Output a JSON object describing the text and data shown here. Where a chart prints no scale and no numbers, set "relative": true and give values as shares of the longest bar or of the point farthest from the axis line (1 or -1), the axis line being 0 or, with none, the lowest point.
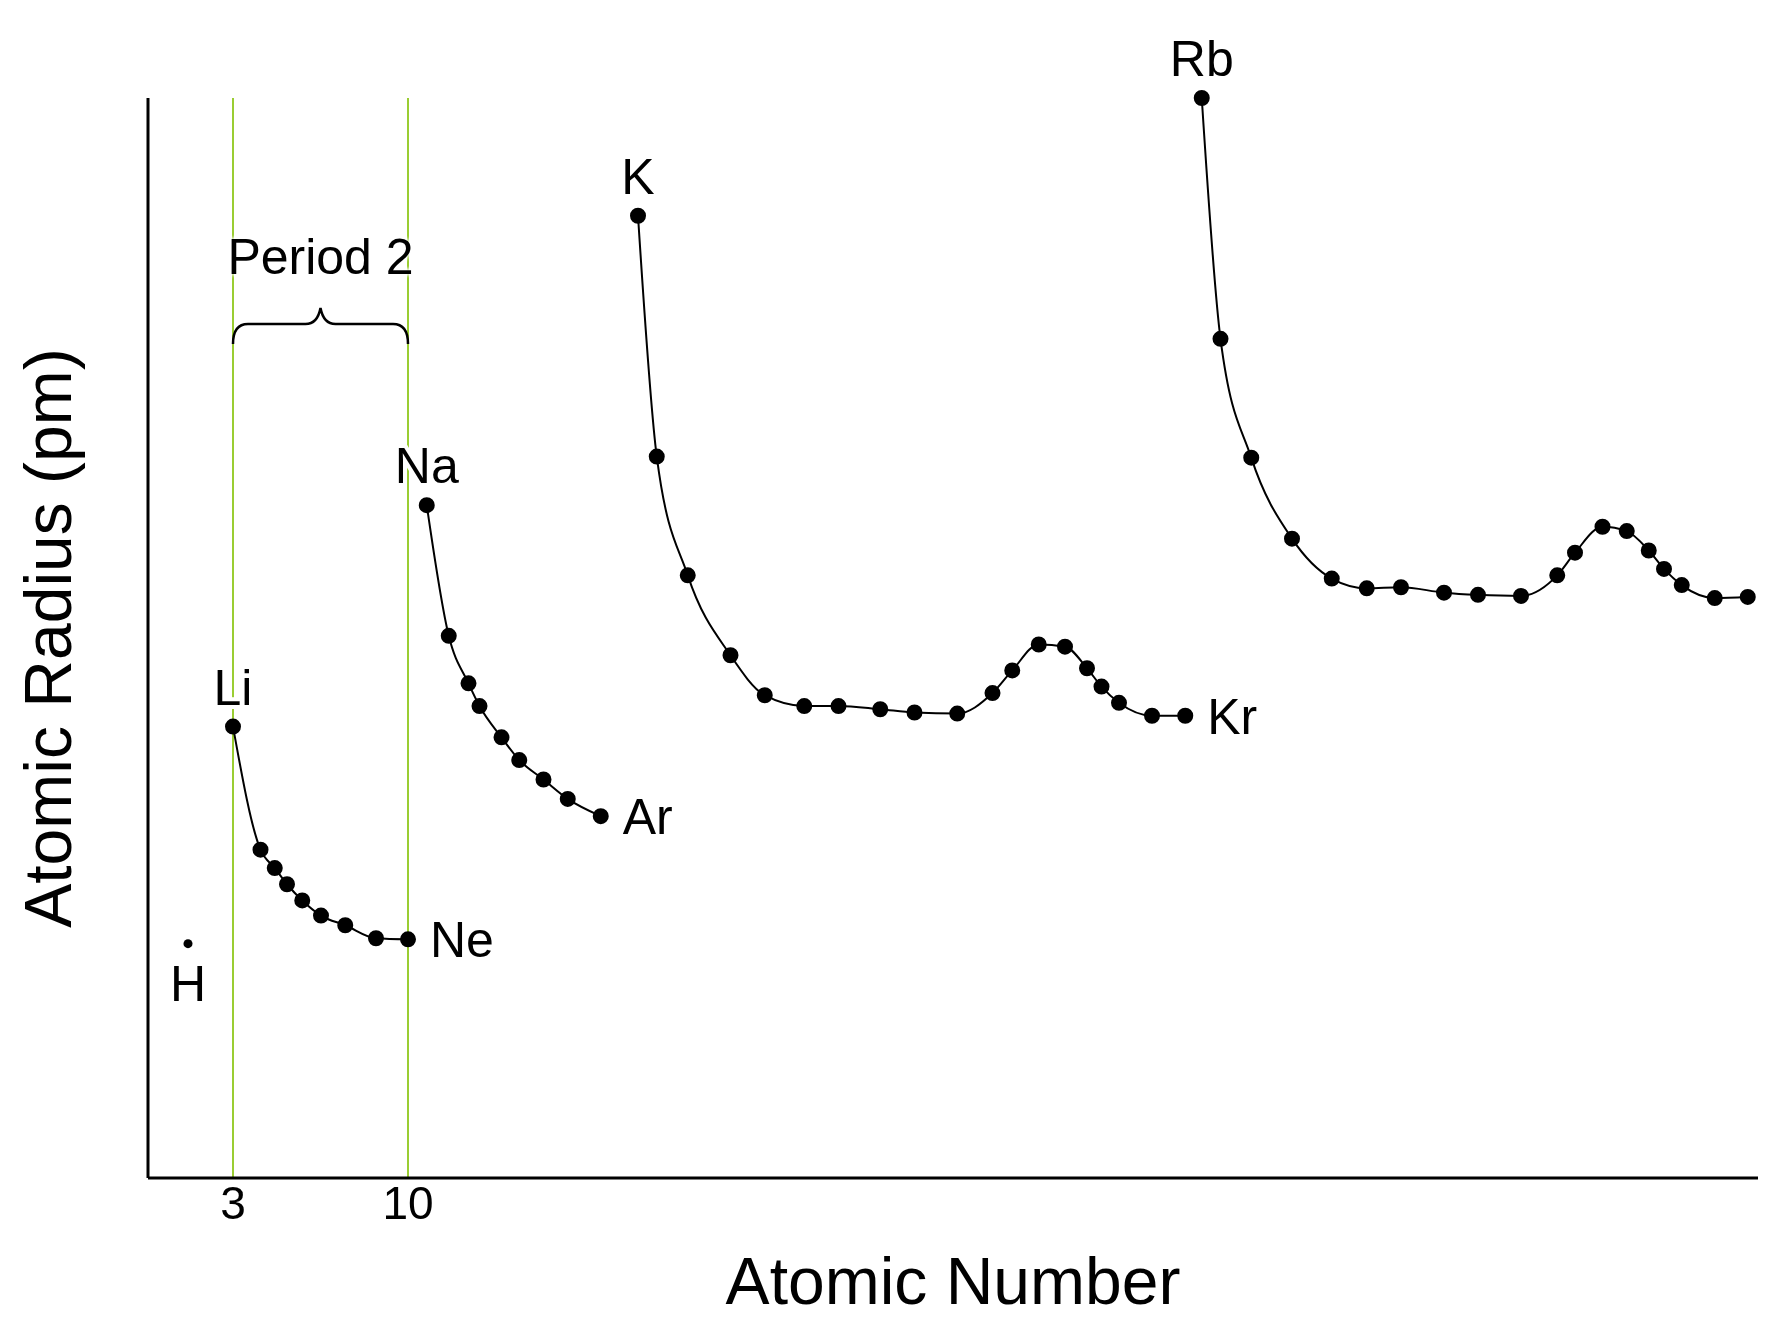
{
  "chart_data": {
    "type": "line",
    "relative": true,
    "xlabel": "Atomic Number",
    "ylabel": "Atomic Radius (pm)",
    "xlim": [
      -0.4,
      64
    ],
    "xticks": [
      3,
      10
    ],
    "marker": "circle",
    "line_style": "solid",
    "grid": false,
    "series": [
      {
        "type": "scatter",
        "color": "#000000",
        "x": [
          1.2
        ],
        "values": [
          0.217
        ]
      },
      {
        "color": "#000000",
        "x": [
          3,
          4.1,
          4.67,
          5.16,
          5.77,
          6.52,
          7.49,
          8.72,
          10
        ],
        "values": [
          0.418,
          0.304,
          0.287,
          0.272,
          0.257,
          0.243,
          0.234,
          0.222,
          0.221
        ]
      },
      {
        "color": "#000000",
        "x": [
          10.75,
          11.63,
          12.42,
          12.86,
          13.74,
          14.45,
          15.42,
          16.39,
          17.71
        ],
        "values": [
          0.623,
          0.502,
          0.458,
          0.437,
          0.408,
          0.387,
          0.369,
          0.351,
          0.335
        ]
      },
      {
        "color": "#000000",
        "x": [
          19.2,
          19.95,
          21.19,
          22.9,
          24.27,
          25.85,
          27.22,
          28.89,
          30.26,
          31.97,
          33.38,
          34.17,
          35.23,
          36.28,
          37.16,
          37.74,
          38.44,
          39.76,
          41.09
        ],
        "values": [
          0.891,
          0.668,
          0.558,
          0.484,
          0.447,
          0.437,
          0.437,
          0.434,
          0.431,
          0.43,
          0.449,
          0.47,
          0.494,
          0.492,
          0.472,
          0.455,
          0.44,
          0.428,
          0.428
        ]
      },
      {
        "color": "#000000",
        "x": [
          41.75,
          42.5,
          43.73,
          45.36,
          46.95,
          48.35,
          49.72,
          51.44,
          52.8,
          54.52,
          55.97,
          56.68,
          57.78,
          58.75,
          59.63,
          60.24,
          60.95,
          62.27,
          63.59
        ],
        "values": [
          1,
          0.777,
          0.667,
          0.592,
          0.555,
          0.546,
          0.547,
          0.542,
          0.54,
          0.539,
          0.558,
          0.579,
          0.603,
          0.599,
          0.581,
          0.564,
          0.549,
          0.537,
          0.538
        ]
      }
    ],
    "ref_lines": [
      {
        "axis": "x",
        "value": 3,
        "color": "#9acd32"
      },
      {
        "axis": "x",
        "value": 10,
        "color": "#9acd32"
      }
    ],
    "annotations": [
      "Period 2",
      {
        "text": "H",
        "x": 1.2,
        "y": 0.217
      },
      {
        "text": "Li",
        "x": 3,
        "y": 0.418
      },
      {
        "text": "Ne",
        "x": 10,
        "y": 0.221
      },
      {
        "text": "Na",
        "x": 10.75,
        "y": 0.623
      },
      {
        "text": "Ar",
        "x": 17.71,
        "y": 0.335
      },
      {
        "text": "K",
        "x": 19.2,
        "y": 0.891
      },
      {
        "text": "Kr",
        "x": 41.09,
        "y": 0.428
      },
      {
        "text": "Rb",
        "x": 41.75,
        "y": 1
      }
    ]
  }
}
